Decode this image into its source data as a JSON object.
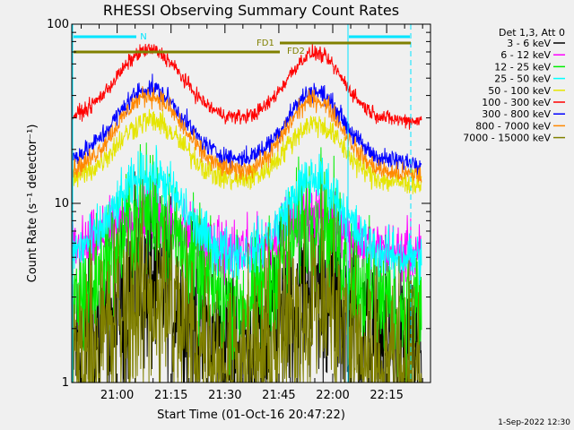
{
  "chart_data": {
    "type": "line",
    "title": "RHESSI Observing Summary Count Rates",
    "xlabel": "Start Time (01-Oct-16 20:47:22)",
    "ylabel": "Count Rate (s⁻¹ detector⁻¹)",
    "y_scale": "log",
    "ylim": [
      1,
      100
    ],
    "x_range_minutes": [
      47.37,
      147.2
    ],
    "x_tick_labels": [
      "21:00",
      "21:15",
      "21:30",
      "21:45",
      "22:00",
      "22:15"
    ],
    "x_tick_minutes": [
      60,
      75,
      90,
      105,
      120,
      135
    ],
    "y_tick_labels": [
      "1",
      "10",
      "100"
    ],
    "y_tick_values": [
      1,
      10,
      100
    ],
    "legend_title": "Det 1,3, Att 0",
    "legend_placement": "outside-right",
    "series": [
      {
        "name": "3 - 6 keV",
        "color": "#000000",
        "peak": 3.6,
        "base": 1.5,
        "noise": 0.35
      },
      {
        "name": "6 - 12 keV",
        "color": "#ff00ff",
        "peak": 9.0,
        "base": 5.3,
        "noise": 0.12
      },
      {
        "name": "12 - 25 keV",
        "color": "#00ee00",
        "peak": 9.0,
        "base": 2.6,
        "noise": 0.25
      },
      {
        "name": "25 - 50 keV",
        "color": "#00ffff",
        "peak": 14.5,
        "base": 5.0,
        "noise": 0.1
      },
      {
        "name": "50 - 100 keV",
        "color": "#e5e500",
        "peak": 29.0,
        "base": 13.0,
        "noise": 0.05
      },
      {
        "name": "100 - 300 keV",
        "color": "#ff0000",
        "peak": 72.0,
        "base": 29.0,
        "noise": 0.03
      },
      {
        "name": "300 - 800 keV",
        "color": "#0000ff",
        "peak": 44.0,
        "base": 17.0,
        "noise": 0.04
      },
      {
        "name": "800 - 7000 keV",
        "color": "#ff8800",
        "peak": 40.0,
        "base": 14.5,
        "noise": 0.04
      },
      {
        "name": "7000 - 15000 keV",
        "color": "#808000",
        "peak": 3.0,
        "base": 1.2,
        "noise": 0.4
      }
    ],
    "peak_minutes": [
      69,
      115
    ],
    "peak_width_minutes": 13,
    "annotations": {
      "night_label": "N",
      "fd1_label": "FD1",
      "fd2_label": "FD2"
    }
  },
  "timestamp": "1-Sep-2022 12:30"
}
